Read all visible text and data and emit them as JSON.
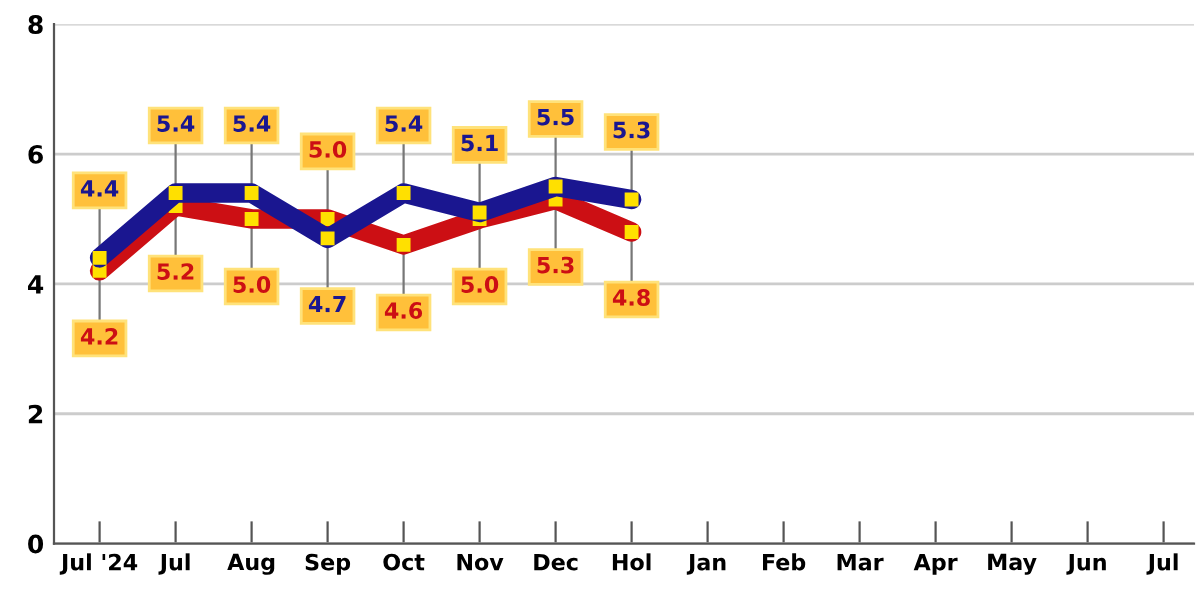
{
  "chart_data": {
    "type": "line",
    "categories": [
      "Jul '24",
      "Jul",
      "Aug",
      "Sep",
      "Oct",
      "Nov",
      "Dec",
      "Hol",
      "Jan",
      "Feb",
      "Mar",
      "Apr",
      "May",
      "Jun",
      "Jul"
    ],
    "series": [
      {
        "color": "#cc0f14",
        "values": [
          4.2,
          5.2,
          5.0,
          5.0,
          4.6,
          5.0,
          5.3,
          4.8,
          null,
          null,
          null,
          null,
          null,
          null,
          null
        ],
        "value_labels": [
          "4.2",
          "5.2",
          "5.0",
          "5.0",
          "4.6",
          "5.0",
          "5.3",
          "4.8",
          null,
          null,
          null,
          null,
          null,
          null,
          null
        ]
      },
      {
        "color": "#1a1690",
        "values": [
          4.4,
          5.4,
          5.4,
          4.7,
          5.4,
          5.1,
          5.5,
          5.3,
          null,
          null,
          null,
          null,
          null,
          null,
          null
        ],
        "value_labels": [
          "4.4",
          "5.4",
          "5.4",
          "4.7",
          "5.4",
          "5.1",
          "5.5",
          "5.3",
          null,
          null,
          null,
          null,
          null,
          null,
          null
        ]
      }
    ],
    "ylim": [
      0,
      8
    ],
    "yticks": [
      0,
      2,
      4,
      6,
      8
    ],
    "grid": "y",
    "marker": "square",
    "line_style": "solid",
    "legend": false
  }
}
